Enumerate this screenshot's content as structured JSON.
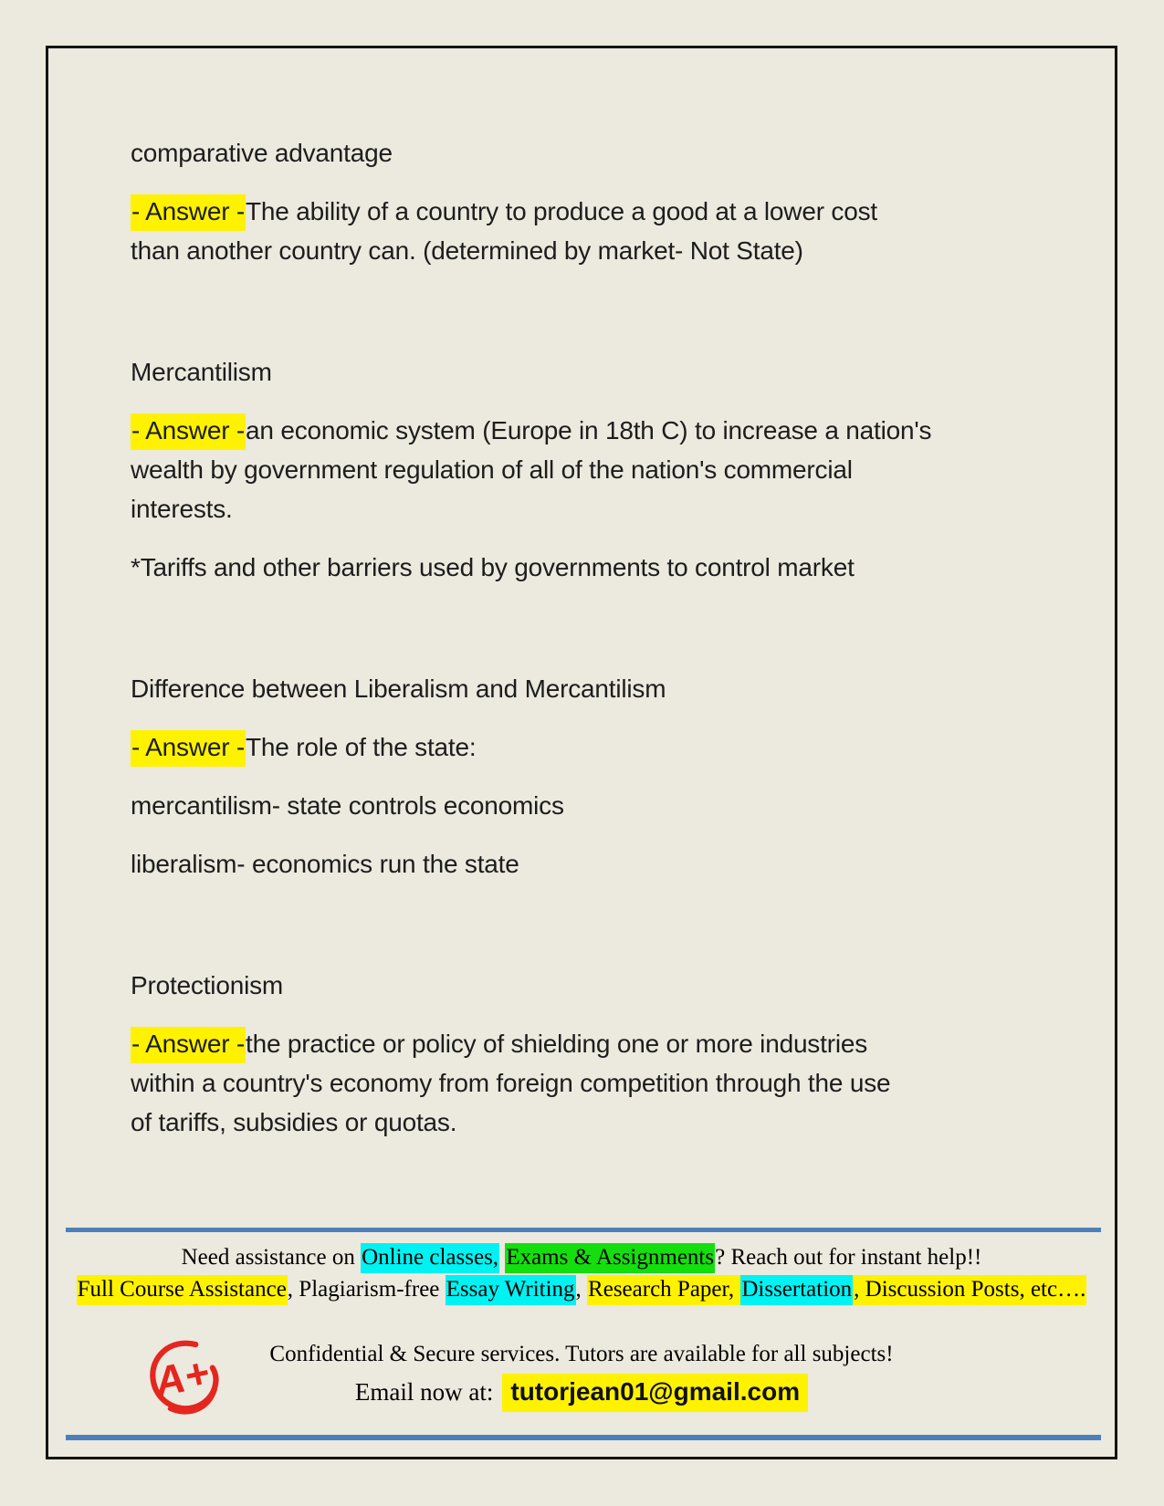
{
  "theme": {
    "bg": "#ece9de",
    "border": "#141414",
    "ink": "#1d1d1d",
    "accent_blue": "#4d80ba",
    "highlight_yellow": "#fff200",
    "highlight_cyan": "#00f2f2",
    "highlight_green": "#15de0e",
    "logo_red": "#e4261f"
  },
  "cards": [
    {
      "term": "comparative advantage",
      "blocks": [
        [
          [
            {
              "t": "- Answer -",
              "hl": "yellow"
            },
            {
              "t": "The ability of a country to produce a good at a lower cost"
            }
          ],
          [
            {
              "t": "than another country can. (determined by market- Not State)"
            }
          ]
        ]
      ]
    },
    {
      "term": "Mercantilism",
      "blocks": [
        [
          [
            {
              "t": "- Answer -",
              "hl": "yellow"
            },
            {
              "t": "an economic system (Europe in 18th C) to increase a nation's"
            }
          ],
          [
            {
              "t": "wealth by government regulation of all of the nation's commercial"
            }
          ],
          [
            {
              "t": "interests."
            }
          ]
        ],
        [
          [
            {
              "t": "*Tariffs and other barriers used by governments to control market"
            }
          ]
        ]
      ]
    },
    {
      "term": "Difference between Liberalism and Mercantilism",
      "blocks": [
        [
          [
            {
              "t": "- Answer -",
              "hl": "yellow"
            },
            {
              "t": "The role of the state:"
            }
          ]
        ],
        [
          [
            {
              "t": "mercantilism- state controls economics"
            }
          ]
        ],
        [
          [
            {
              "t": "liberalism- economics run the state"
            }
          ]
        ]
      ]
    },
    {
      "term": "Protectionism",
      "blocks": [
        [
          [
            {
              "t": "- Answer -",
              "hl": "yellow"
            },
            {
              "t": "the practice or policy of shielding one or more industries"
            }
          ],
          [
            {
              "t": "within a country's economy from foreign competition through the use"
            }
          ],
          [
            {
              "t": "of tariffs, subsidies or quotas."
            }
          ]
        ]
      ]
    }
  ],
  "footer": {
    "line1": [
      {
        "t": "Need assistance on "
      },
      {
        "t": "Online classes,",
        "hl": "cyan"
      },
      {
        "t": " "
      },
      {
        "t": "Exams & Assignments",
        "hl": "green"
      },
      {
        "t": "? Reach out for instant help!!"
      }
    ],
    "line2": [
      {
        "t": "Full Course Assistance",
        "hl": "yellow"
      },
      {
        "t": ", Plagiarism-free "
      },
      {
        "t": "Essay Writing",
        "hl": "cyan"
      },
      {
        "t": ", "
      },
      {
        "t": "Research Paper, ",
        "hl": "yellow"
      },
      {
        "t": "Dissertation",
        "hl": "cyan"
      },
      {
        "t": ", Discussion Posts, etc….",
        "hl": "yellow"
      }
    ],
    "confidential_line": "Confidential & Secure services. Tutors are available for all subjects!",
    "email_label": "Email now at:",
    "email": "tutorjean01@gmail.com",
    "logo_text": "A+"
  }
}
